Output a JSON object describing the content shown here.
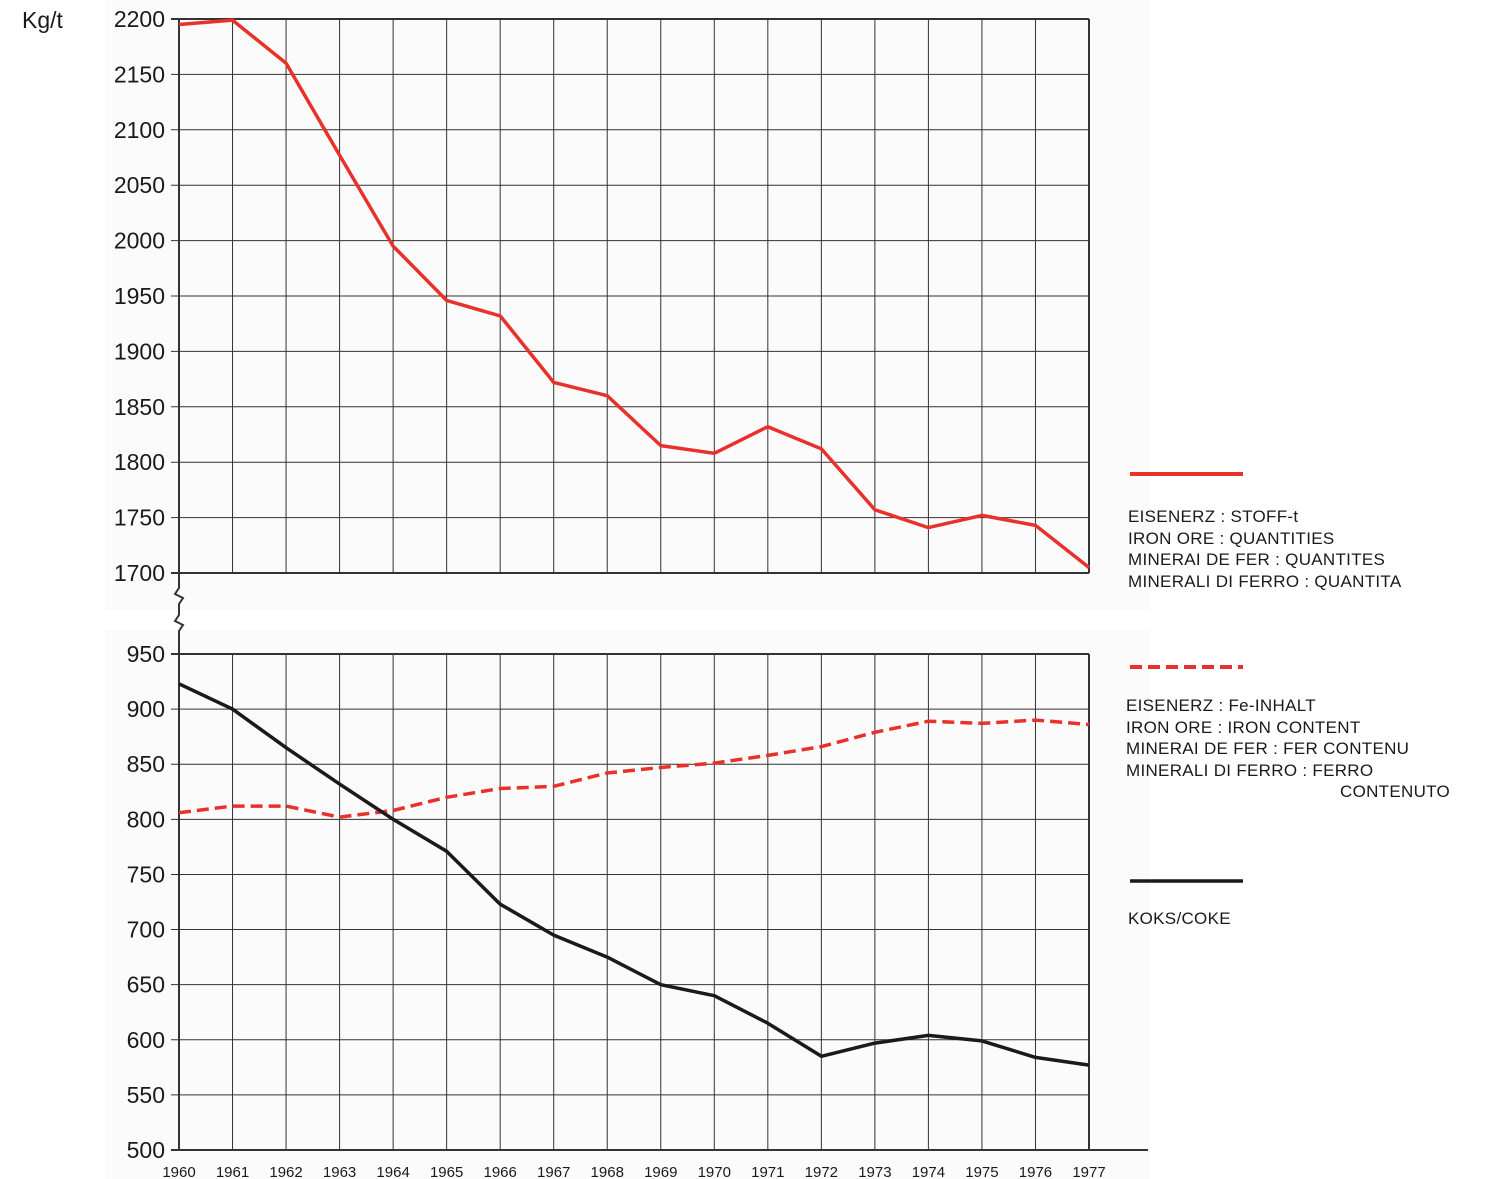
{
  "chart_data": [
    {
      "type": "line",
      "ylabel": "Kg/t",
      "ylim": [
        1700,
        2200
      ],
      "yticks": [
        2200,
        2150,
        2100,
        2050,
        2000,
        1950,
        1900,
        1850,
        1800,
        1750,
        1700
      ],
      "x": [
        1960,
        1961,
        1962,
        1963,
        1964,
        1965,
        1966,
        1967,
        1968,
        1969,
        1970,
        1971,
        1972,
        1973,
        1974,
        1975,
        1976,
        1977
      ],
      "series": [
        {
          "name": "IRON ORE : QUANTITIES",
          "color": "#e8312a",
          "dash": "solid",
          "values": [
            2195,
            2199,
            2160,
            2077,
            1995,
            1946,
            1932,
            1872,
            1860,
            1815,
            1808,
            1832,
            1812,
            1757,
            1741,
            1752,
            1743,
            1705
          ]
        }
      ],
      "grid": true
    },
    {
      "type": "line",
      "ylim": [
        500,
        950
      ],
      "yticks": [
        950,
        900,
        850,
        800,
        750,
        700,
        650,
        600,
        550,
        500
      ],
      "x": [
        1960,
        1961,
        1962,
        1963,
        1964,
        1965,
        1966,
        1967,
        1968,
        1969,
        1970,
        1971,
        1972,
        1973,
        1974,
        1975,
        1976,
        1977
      ],
      "xticks": [
        "1960",
        "1961",
        "1962",
        "1963",
        "1964",
        "1965",
        "1966",
        "1967",
        "1968",
        "1969",
        "1970",
        "1971",
        "1972",
        "1973",
        "1974",
        "1975",
        "1976",
        "1977"
      ],
      "series": [
        {
          "name": "IRON ORE : IRON CONTENT",
          "color": "#e8312a",
          "dash": "dashed",
          "values": [
            806,
            812,
            812,
            802,
            808,
            820,
            828,
            830,
            842,
            847,
            851,
            858,
            866,
            879,
            889,
            887,
            890,
            886
          ]
        },
        {
          "name": "KOKS/COKE",
          "color": "#1a1a1a",
          "dash": "solid",
          "values": [
            923,
            900,
            865,
            832,
            800,
            771,
            723,
            695,
            675,
            650,
            640,
            615,
            585,
            597,
            604,
            599,
            584,
            577
          ]
        }
      ],
      "grid": true
    }
  ],
  "legend": {
    "ore_quantity": [
      "EISENERZ : STOFF-t",
      "IRON ORE : QUANTITIES",
      "MINERAI DE FER : QUANTITES",
      "MINERALI DI FERRO : QUANTITA"
    ],
    "ore_content": [
      "EISENERZ : Fe-INHALT",
      "IRON ORE : IRON CONTENT",
      "MINERAI DE FER : FER CONTENU",
      "MINERALI DI FERRO : FERRO"
    ],
    "ore_content_last": "CONTENUTO",
    "coke": "KOKS/COKE"
  },
  "colors": {
    "red": "#e8312a",
    "black": "#1a1a1a",
    "grid": "#333333"
  }
}
